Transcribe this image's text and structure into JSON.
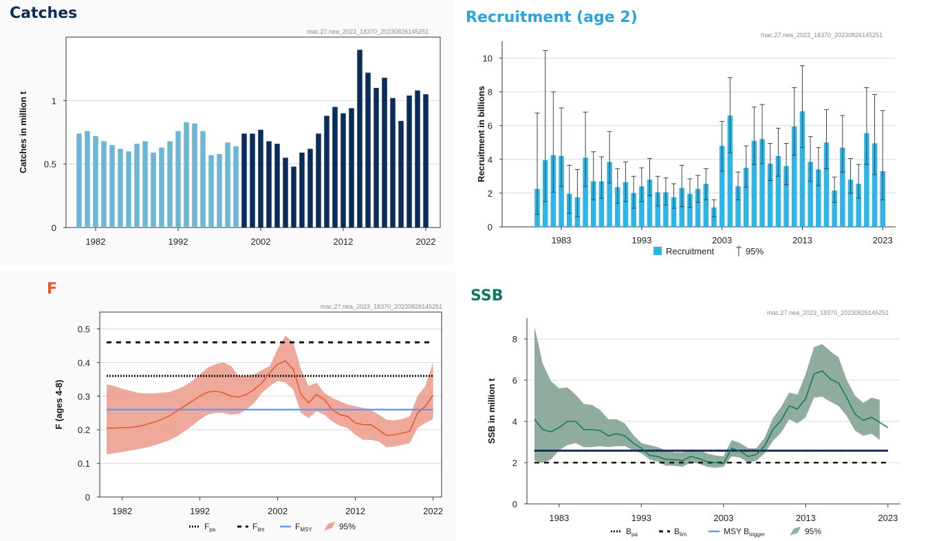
{
  "source_id": "mac.27.nea_2023_18370_20230826145251",
  "colors": {
    "catches_title": "#0b2d55",
    "recruit_title": "#2aa5dc",
    "f_title": "#e8582a",
    "ssb_title": "#0f7a62",
    "bar_light": "#6cb6d6",
    "bar_dark": "#082d5b",
    "recruit_bar": "#2db5e8",
    "f_line": "#e8582a",
    "f_band": "#ec9a88",
    "fmsy": "#6699ee",
    "ssb_line": "#0f7a62",
    "ssb_band": "#8aa89a",
    "btrigger": "#1a3a8a"
  },
  "chart_data": [
    {
      "id": "catches",
      "type": "bar",
      "title": "Catches",
      "ylabel": "Catches in million t",
      "ylim": [
        0,
        1.5
      ],
      "yticks": [
        0,
        0.5,
        1
      ],
      "ytick_labels": [
        "0",
        "0.5",
        "1"
      ],
      "xticks": [
        "1982",
        "1992",
        "2002",
        "2012",
        "2022"
      ],
      "first_year": 1980,
      "split_year": 2000,
      "values": [
        0.74,
        0.76,
        0.72,
        0.68,
        0.65,
        0.62,
        0.6,
        0.66,
        0.68,
        0.59,
        0.63,
        0.68,
        0.76,
        0.83,
        0.82,
        0.76,
        0.57,
        0.58,
        0.67,
        0.64,
        0.74,
        0.74,
        0.77,
        0.68,
        0.66,
        0.55,
        0.48,
        0.59,
        0.62,
        0.74,
        0.88,
        0.95,
        0.9,
        0.94,
        1.4,
        1.22,
        1.1,
        1.18,
        1.02,
        0.84,
        1.04,
        1.08,
        1.05
      ]
    },
    {
      "id": "recruitment",
      "type": "bar",
      "title": "Recruitment (age 2)",
      "ylabel": "Recruitment in billions",
      "ylim": [
        0,
        11
      ],
      "yticks": [
        0,
        2,
        4,
        6,
        8,
        10
      ],
      "ytick_labels": [
        "0",
        "2",
        "4",
        "6",
        "8",
        "10"
      ],
      "xticks": [
        "1983",
        "1993",
        "2003",
        "2013",
        "2023"
      ],
      "first_year": 1980,
      "legend": {
        "bar": "Recruitment",
        "ci": "95%"
      },
      "values": [
        2.25,
        3.95,
        4.25,
        4.2,
        1.95,
        1.75,
        4.1,
        2.7,
        2.7,
        3.85,
        2.35,
        2.65,
        2.0,
        2.4,
        2.8,
        2.05,
        2.05,
        1.75,
        2.3,
        1.95,
        2.25,
        2.55,
        1.15,
        4.8,
        6.6,
        2.4,
        3.5,
        5.1,
        5.2,
        3.75,
        4.2,
        3.6,
        5.95,
        6.85,
        3.85,
        3.4,
        5.0,
        2.15,
        4.7,
        2.8,
        2.55,
        5.55,
        4.95,
        3.3
      ],
      "upper": [
        6.75,
        10.45,
        8.0,
        7.05,
        3.65,
        3.4,
        6.8,
        4.45,
        4.15,
        5.65,
        3.45,
        3.85,
        3.0,
        3.5,
        4.05,
        3.0,
        2.9,
        2.55,
        3.65,
        2.85,
        3.05,
        3.45,
        1.6,
        6.25,
        8.85,
        3.25,
        4.8,
        7.1,
        7.25,
        4.95,
        5.85,
        4.95,
        8.25,
        9.55,
        5.35,
        4.7,
        6.95,
        2.95,
        6.6,
        4.05,
        3.7,
        8.25,
        7.85,
        6.9
      ],
      "lower": [
        0.75,
        1.5,
        2.05,
        2.4,
        0.8,
        0.6,
        2.4,
        1.6,
        1.7,
        2.6,
        1.4,
        1.5,
        1.1,
        1.5,
        1.85,
        1.25,
        1.3,
        1.1,
        1.2,
        1.15,
        1.45,
        1.6,
        0.6,
        3.3,
        4.4,
        1.6,
        2.35,
        3.7,
        3.75,
        2.75,
        3.0,
        2.5,
        4.25,
        4.7,
        2.7,
        2.45,
        3.45,
        1.45,
        3.25,
        2.0,
        1.7,
        3.7,
        3.1,
        1.6
      ]
    },
    {
      "id": "f",
      "type": "line",
      "title": "F",
      "ylabel": "F (ages 4-8)",
      "ylim": [
        0,
        0.55
      ],
      "yticks": [
        0,
        0.1,
        0.2,
        0.3,
        0.4,
        0.5
      ],
      "ytick_labels": [
        "0",
        "0.1",
        "0.2",
        "0.3",
        "0.4",
        "0.5"
      ],
      "xticks": [
        "1982",
        "1992",
        "2002",
        "2012",
        "2022"
      ],
      "first_year": 1980,
      "series": [
        {
          "name": "F",
          "values": [
            0.205,
            0.205,
            0.206,
            0.207,
            0.21,
            0.215,
            0.222,
            0.23,
            0.24,
            0.255,
            0.27,
            0.285,
            0.3,
            0.312,
            0.315,
            0.31,
            0.3,
            0.297,
            0.305,
            0.32,
            0.34,
            0.37,
            0.395,
            0.405,
            0.38,
            0.305,
            0.28,
            0.305,
            0.29,
            0.26,
            0.245,
            0.24,
            0.22,
            0.215,
            0.215,
            0.2,
            0.183,
            0.185,
            0.19,
            0.195,
            0.25,
            0.27,
            0.303
          ]
        },
        {
          "name": "95% upper",
          "values": [
            0.335,
            0.33,
            0.322,
            0.316,
            0.31,
            0.308,
            0.308,
            0.31,
            0.312,
            0.32,
            0.33,
            0.345,
            0.365,
            0.385,
            0.395,
            0.4,
            0.39,
            0.36,
            0.36,
            0.365,
            0.378,
            0.39,
            0.44,
            0.48,
            0.46,
            0.38,
            0.33,
            0.34,
            0.31,
            0.295,
            0.285,
            0.275,
            0.27,
            0.265,
            0.26,
            0.245,
            0.23,
            0.228,
            0.232,
            0.24,
            0.3,
            0.33,
            0.4
          ]
        },
        {
          "name": "95% lower",
          "values": [
            0.127,
            0.13,
            0.134,
            0.138,
            0.142,
            0.147,
            0.153,
            0.16,
            0.168,
            0.18,
            0.195,
            0.212,
            0.23,
            0.245,
            0.25,
            0.25,
            0.245,
            0.247,
            0.26,
            0.28,
            0.31,
            0.33,
            0.345,
            0.34,
            0.32,
            0.25,
            0.235,
            0.255,
            0.245,
            0.225,
            0.212,
            0.205,
            0.185,
            0.17,
            0.17,
            0.165,
            0.148,
            0.15,
            0.155,
            0.16,
            0.205,
            0.22,
            0.232
          ]
        }
      ],
      "refs": {
        "Fpa": 0.36,
        "Flim": 0.46,
        "FMSY": 0.26
      },
      "legend": {
        "pa_main": "F",
        "pa_sub": "pa",
        "lim_main": "F",
        "lim_sub": "lim",
        "msy_main": "F",
        "msy_sub": "MSY",
        "ci": "95%"
      }
    },
    {
      "id": "ssb",
      "type": "line",
      "title": "SSB",
      "ylabel": "SSB in million t",
      "ylim": [
        0,
        9
      ],
      "yticks": [
        0,
        2,
        4,
        6,
        8
      ],
      "ytick_labels": [
        "0",
        "2",
        "4",
        "6",
        "8"
      ],
      "xticks": [
        "1983",
        "1993",
        "2003",
        "2013",
        "2023"
      ],
      "first_year": 1980,
      "series": [
        {
          "name": "SSB",
          "values": [
            4.1,
            3.6,
            3.5,
            3.7,
            4.0,
            4.0,
            3.6,
            3.6,
            3.55,
            3.3,
            3.4,
            3.3,
            2.95,
            2.7,
            2.35,
            2.3,
            2.15,
            2.15,
            2.1,
            2.3,
            2.2,
            2.05,
            2.0,
            1.95,
            2.7,
            2.55,
            2.3,
            2.4,
            2.8,
            3.6,
            4.05,
            4.75,
            4.6,
            5.1,
            6.3,
            6.45,
            6.05,
            5.85,
            5.15,
            4.35,
            4.05,
            4.2,
            3.95,
            3.7
          ]
        },
        {
          "name": "95% upper",
          "values": [
            8.6,
            6.8,
            5.95,
            5.6,
            5.65,
            5.3,
            4.85,
            4.8,
            4.55,
            4.1,
            4.1,
            3.9,
            3.35,
            2.95,
            2.85,
            2.75,
            2.6,
            2.5,
            2.5,
            2.65,
            2.6,
            2.45,
            2.35,
            2.3,
            3.1,
            2.95,
            2.7,
            2.7,
            3.2,
            4.15,
            4.7,
            5.4,
            5.3,
            6.3,
            7.6,
            7.75,
            7.4,
            7.1,
            6.0,
            5.25,
            4.9,
            5.15,
            5.05
          ]
        },
        {
          "name": "95% lower",
          "values": [
            2.1,
            2.0,
            2.15,
            2.6,
            2.85,
            2.95,
            2.75,
            2.75,
            2.8,
            2.75,
            2.8,
            2.8,
            2.6,
            2.45,
            2.15,
            2.05,
            1.85,
            1.85,
            1.8,
            2.0,
            1.95,
            1.8,
            1.75,
            1.8,
            2.3,
            2.25,
            2.0,
            2.1,
            2.45,
            3.05,
            3.45,
            4.1,
            3.9,
            4.2,
            5.15,
            5.2,
            4.95,
            4.75,
            4.25,
            3.55,
            3.3,
            3.4,
            3.1
          ]
        }
      ],
      "refs": {
        "Bpa": 2.58,
        "Blim": 2.0,
        "MSYBtrigger": 2.58
      },
      "legend": {
        "pa_main": "B",
        "pa_sub": "pa",
        "lim_main": "B",
        "lim_sub": "lim",
        "msy_main": "MSY B",
        "msy_sub": "trigger",
        "ci": "95%"
      }
    }
  ]
}
